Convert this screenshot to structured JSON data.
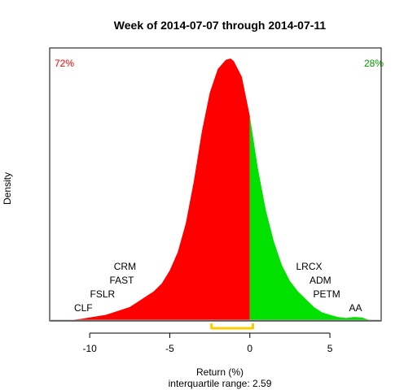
{
  "chart_data": {
    "type": "area",
    "title": "Week of 2014-07-07 through 2014-07-11",
    "xlabel": "Return (%)",
    "ylabel": "Density",
    "subtitle": "interquartile range: 2.59",
    "xlim": [
      -12.5,
      8.2
    ],
    "ylim": [
      0,
      1
    ],
    "x_ticks": [
      -10,
      -5,
      0,
      5
    ],
    "split_at": 0,
    "negative_share": "72%",
    "positive_share": "28%",
    "colors": {
      "negative": "#ff0000",
      "positive": "#00e100",
      "iqr": "#ffcc00",
      "axis": "#b3b3b3"
    },
    "density": {
      "x": [
        -11.2,
        -10.5,
        -10.0,
        -9.5,
        -9.0,
        -8.5,
        -8.0,
        -7.5,
        -7.0,
        -6.5,
        -6.0,
        -5.5,
        -5.0,
        -4.5,
        -4.0,
        -3.5,
        -3.0,
        -2.5,
        -2.0,
        -1.5,
        -1.2,
        -1.0,
        -0.5,
        0.0,
        0.5,
        1.0,
        1.5,
        2.0,
        2.5,
        3.0,
        3.5,
        4.0,
        4.5,
        5.0,
        5.5,
        6.0,
        6.5,
        7.0,
        7.5
      ],
      "y": [
        0.0,
        0.005,
        0.01,
        0.015,
        0.02,
        0.03,
        0.04,
        0.05,
        0.07,
        0.09,
        0.11,
        0.14,
        0.19,
        0.26,
        0.37,
        0.53,
        0.72,
        0.87,
        0.96,
        0.995,
        1.0,
        0.99,
        0.93,
        0.78,
        0.58,
        0.42,
        0.3,
        0.21,
        0.15,
        0.11,
        0.08,
        0.05,
        0.03,
        0.02,
        0.012,
        0.008,
        0.012,
        0.01,
        0.0
      ]
    },
    "iqr": [
      -2.4,
      0.19
    ],
    "stock_labels": {
      "left": [
        {
          "ticker": "CRM",
          "x": -7.8,
          "row": 3
        },
        {
          "ticker": "FAST",
          "x": -8.0,
          "row": 2
        },
        {
          "ticker": "FSLR",
          "x": -9.2,
          "row": 1
        },
        {
          "ticker": "CLF",
          "x": -10.4,
          "row": 0
        }
      ],
      "right": [
        {
          "ticker": "LRCX",
          "x": 3.7,
          "row": 3
        },
        {
          "ticker": "ADM",
          "x": 4.4,
          "row": 2
        },
        {
          "ticker": "PETM",
          "x": 4.8,
          "row": 1
        },
        {
          "ticker": "AA",
          "x": 6.6,
          "row": 0
        }
      ]
    }
  }
}
